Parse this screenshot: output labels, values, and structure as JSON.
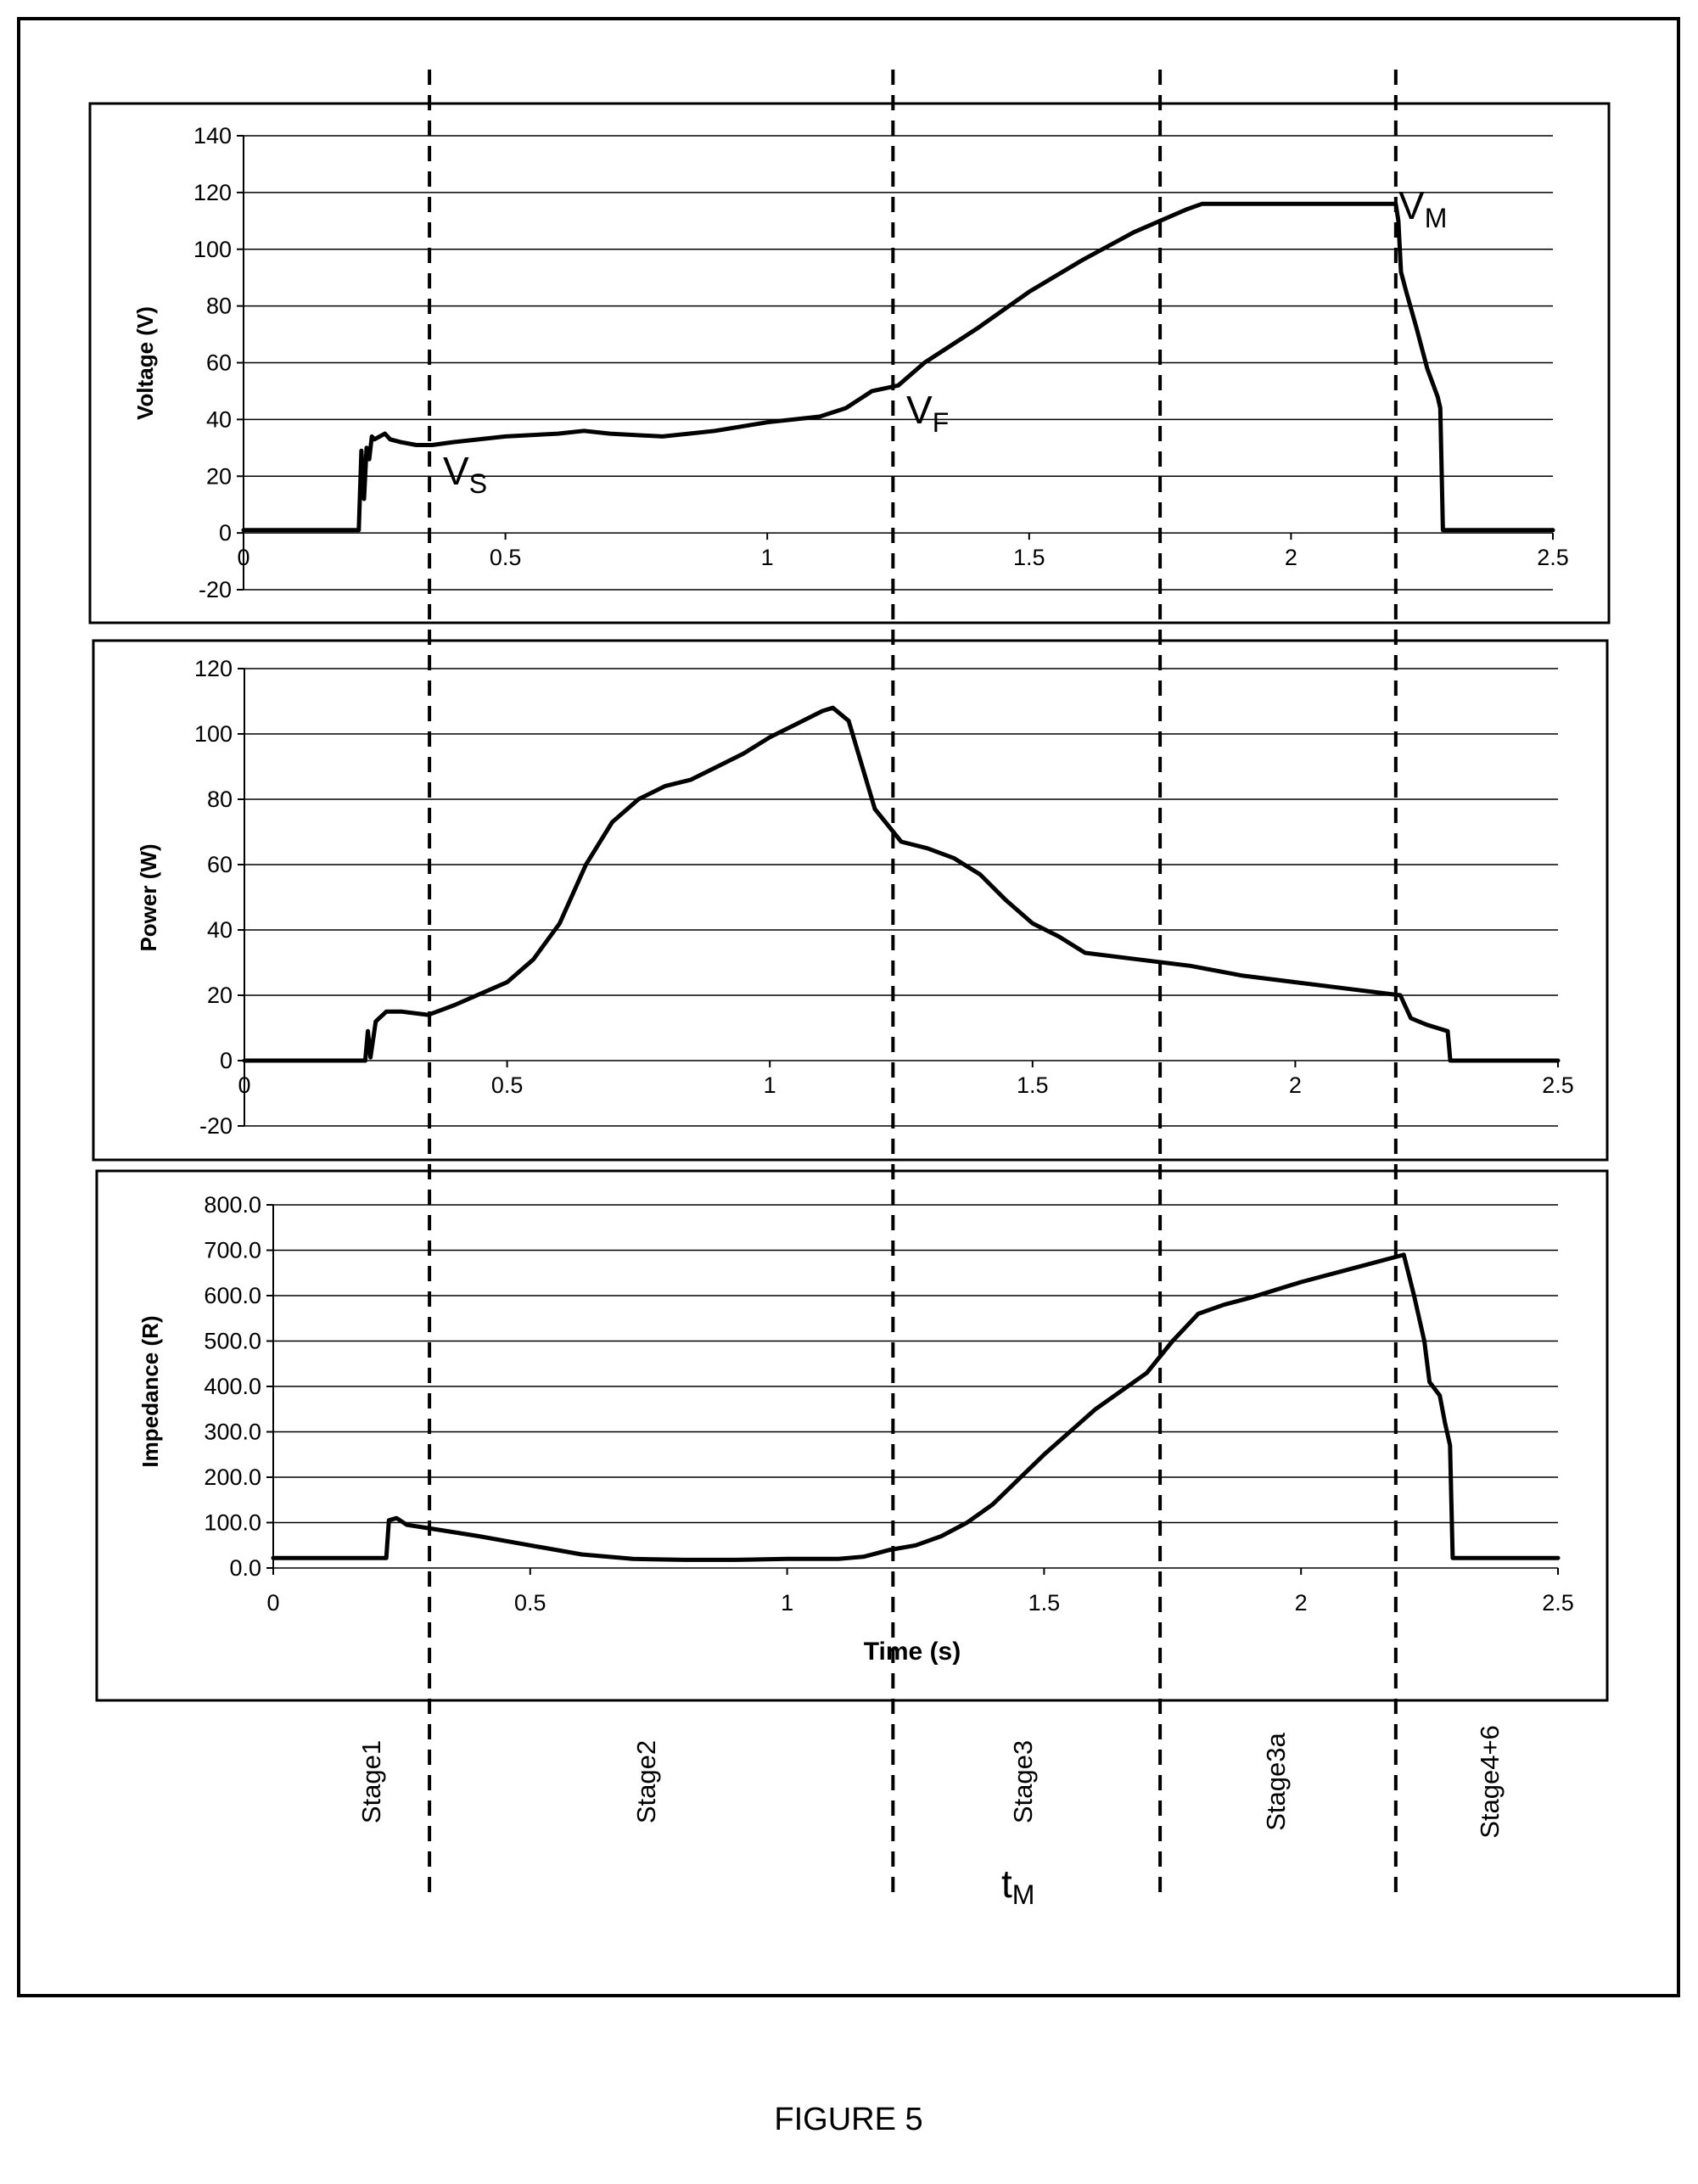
{
  "figure_label": "FIGURE 5",
  "chart_data": [
    {
      "type": "line",
      "title": "",
      "xlabel": "",
      "ylabel": "Voltage (V)",
      "xlim": [
        0,
        2.5
      ],
      "ylim": [
        -20,
        140
      ],
      "x_ticks": [
        "0",
        "0.5",
        "1",
        "1.5",
        "2",
        "2.5"
      ],
      "y_ticks": [
        "-20",
        "0",
        "20",
        "40",
        "60",
        "80",
        "100",
        "120",
        "140"
      ],
      "grid": "horizontal",
      "series": [
        {
          "x": [
            0,
            0.2,
            0.22,
            0.225,
            0.23,
            0.235,
            0.24,
            0.245,
            0.25,
            0.27,
            0.28,
            0.3,
            0.33,
            0.36,
            0.4,
            0.5,
            0.6,
            0.65,
            0.7,
            0.8,
            0.85,
            0.9,
            1.0,
            1.1,
            1.15,
            1.2,
            1.25,
            1.3,
            1.4,
            1.5,
            1.6,
            1.7,
            1.8,
            1.83,
            1.9,
            2.0,
            2.1,
            2.2,
            2.205,
            2.21,
            2.22,
            2.24,
            2.26,
            2.28,
            2.285,
            2.29,
            2.5
          ],
          "y": [
            1,
            1,
            1,
            29,
            12,
            30,
            26,
            34,
            33,
            35,
            33,
            32,
            31,
            31,
            32,
            34,
            35,
            36,
            35,
            34,
            35,
            36,
            39,
            41,
            44,
            50,
            52,
            60,
            72,
            85,
            96,
            106,
            114,
            116,
            116,
            116,
            116,
            116,
            110,
            92,
            85,
            72,
            58,
            48,
            44,
            1,
            1
          ]
        }
      ],
      "annotations": [
        {
          "text": "V",
          "sub": "S"
        },
        {
          "text": "V",
          "sub": "F"
        },
        {
          "text": "V",
          "sub": "M"
        }
      ]
    },
    {
      "type": "line",
      "title": "",
      "xlabel": "",
      "ylabel": "Power (W)",
      "xlim": [
        0,
        2.5
      ],
      "ylim": [
        -20,
        120
      ],
      "x_ticks": [
        "0",
        "0.5",
        "1",
        "1.5",
        "2",
        "2.5"
      ],
      "y_ticks": [
        "-20",
        "0",
        "20",
        "40",
        "60",
        "80",
        "100",
        "120"
      ],
      "grid": "horizontal",
      "series": [
        {
          "x": [
            0,
            0.2,
            0.23,
            0.235,
            0.24,
            0.25,
            0.27,
            0.3,
            0.35,
            0.4,
            0.5,
            0.55,
            0.6,
            0.65,
            0.7,
            0.75,
            0.8,
            0.85,
            0.9,
            0.95,
            1.0,
            1.05,
            1.1,
            1.12,
            1.15,
            1.2,
            1.25,
            1.3,
            1.35,
            1.4,
            1.45,
            1.5,
            1.55,
            1.6,
            1.7,
            1.8,
            1.9,
            2.0,
            2.1,
            2.2,
            2.22,
            2.25,
            2.27,
            2.29,
            2.295,
            2.5
          ],
          "y": [
            0,
            0,
            0,
            9,
            1,
            12,
            15,
            15,
            14,
            17,
            24,
            31,
            42,
            60,
            73,
            80,
            84,
            86,
            90,
            94,
            99,
            103,
            107,
            108,
            104,
            77,
            67,
            65,
            62,
            57,
            49,
            42,
            38,
            33,
            31,
            29,
            26,
            24,
            22,
            20,
            13,
            11,
            10,
            9,
            0,
            0
          ]
        }
      ]
    },
    {
      "type": "line",
      "title": "",
      "xlabel": "Time (s)",
      "ylabel": "Impedance (R)",
      "xlim": [
        0,
        2.5
      ],
      "ylim": [
        0,
        800
      ],
      "x_ticks": [
        "0",
        "0.5",
        "1",
        "1.5",
        "2",
        "2.5"
      ],
      "y_ticks": [
        "0.0",
        "100.0",
        "200.0",
        "300.0",
        "400.0",
        "500.0",
        "600.0",
        "700.0",
        "800.0"
      ],
      "grid": "horizontal",
      "series": [
        {
          "x": [
            0,
            0.22,
            0.225,
            0.24,
            0.26,
            0.3,
            0.4,
            0.5,
            0.6,
            0.7,
            0.8,
            0.9,
            1.0,
            1.1,
            1.15,
            1.2,
            1.25,
            1.3,
            1.35,
            1.4,
            1.5,
            1.6,
            1.7,
            1.75,
            1.8,
            1.85,
            1.9,
            2.0,
            2.1,
            2.2,
            2.22,
            2.24,
            2.25,
            2.27,
            2.28,
            2.29,
            2.295,
            2.5
          ],
          "y": [
            22,
            22,
            105,
            110,
            95,
            88,
            70,
            50,
            30,
            20,
            18,
            18,
            20,
            20,
            25,
            40,
            50,
            70,
            100,
            140,
            250,
            350,
            430,
            500,
            560,
            580,
            595,
            630,
            660,
            690,
            600,
            500,
            410,
            380,
            320,
            270,
            22,
            22
          ]
        }
      ]
    }
  ],
  "stage_dividers": [
    0.355,
    1.24,
    1.75,
    2.2
  ],
  "stages": [
    "Stage1",
    "Stage2",
    "Stage3",
    "Stage3a",
    "Stage4+6"
  ],
  "time_marker": {
    "text": "t",
    "sub": "M"
  }
}
